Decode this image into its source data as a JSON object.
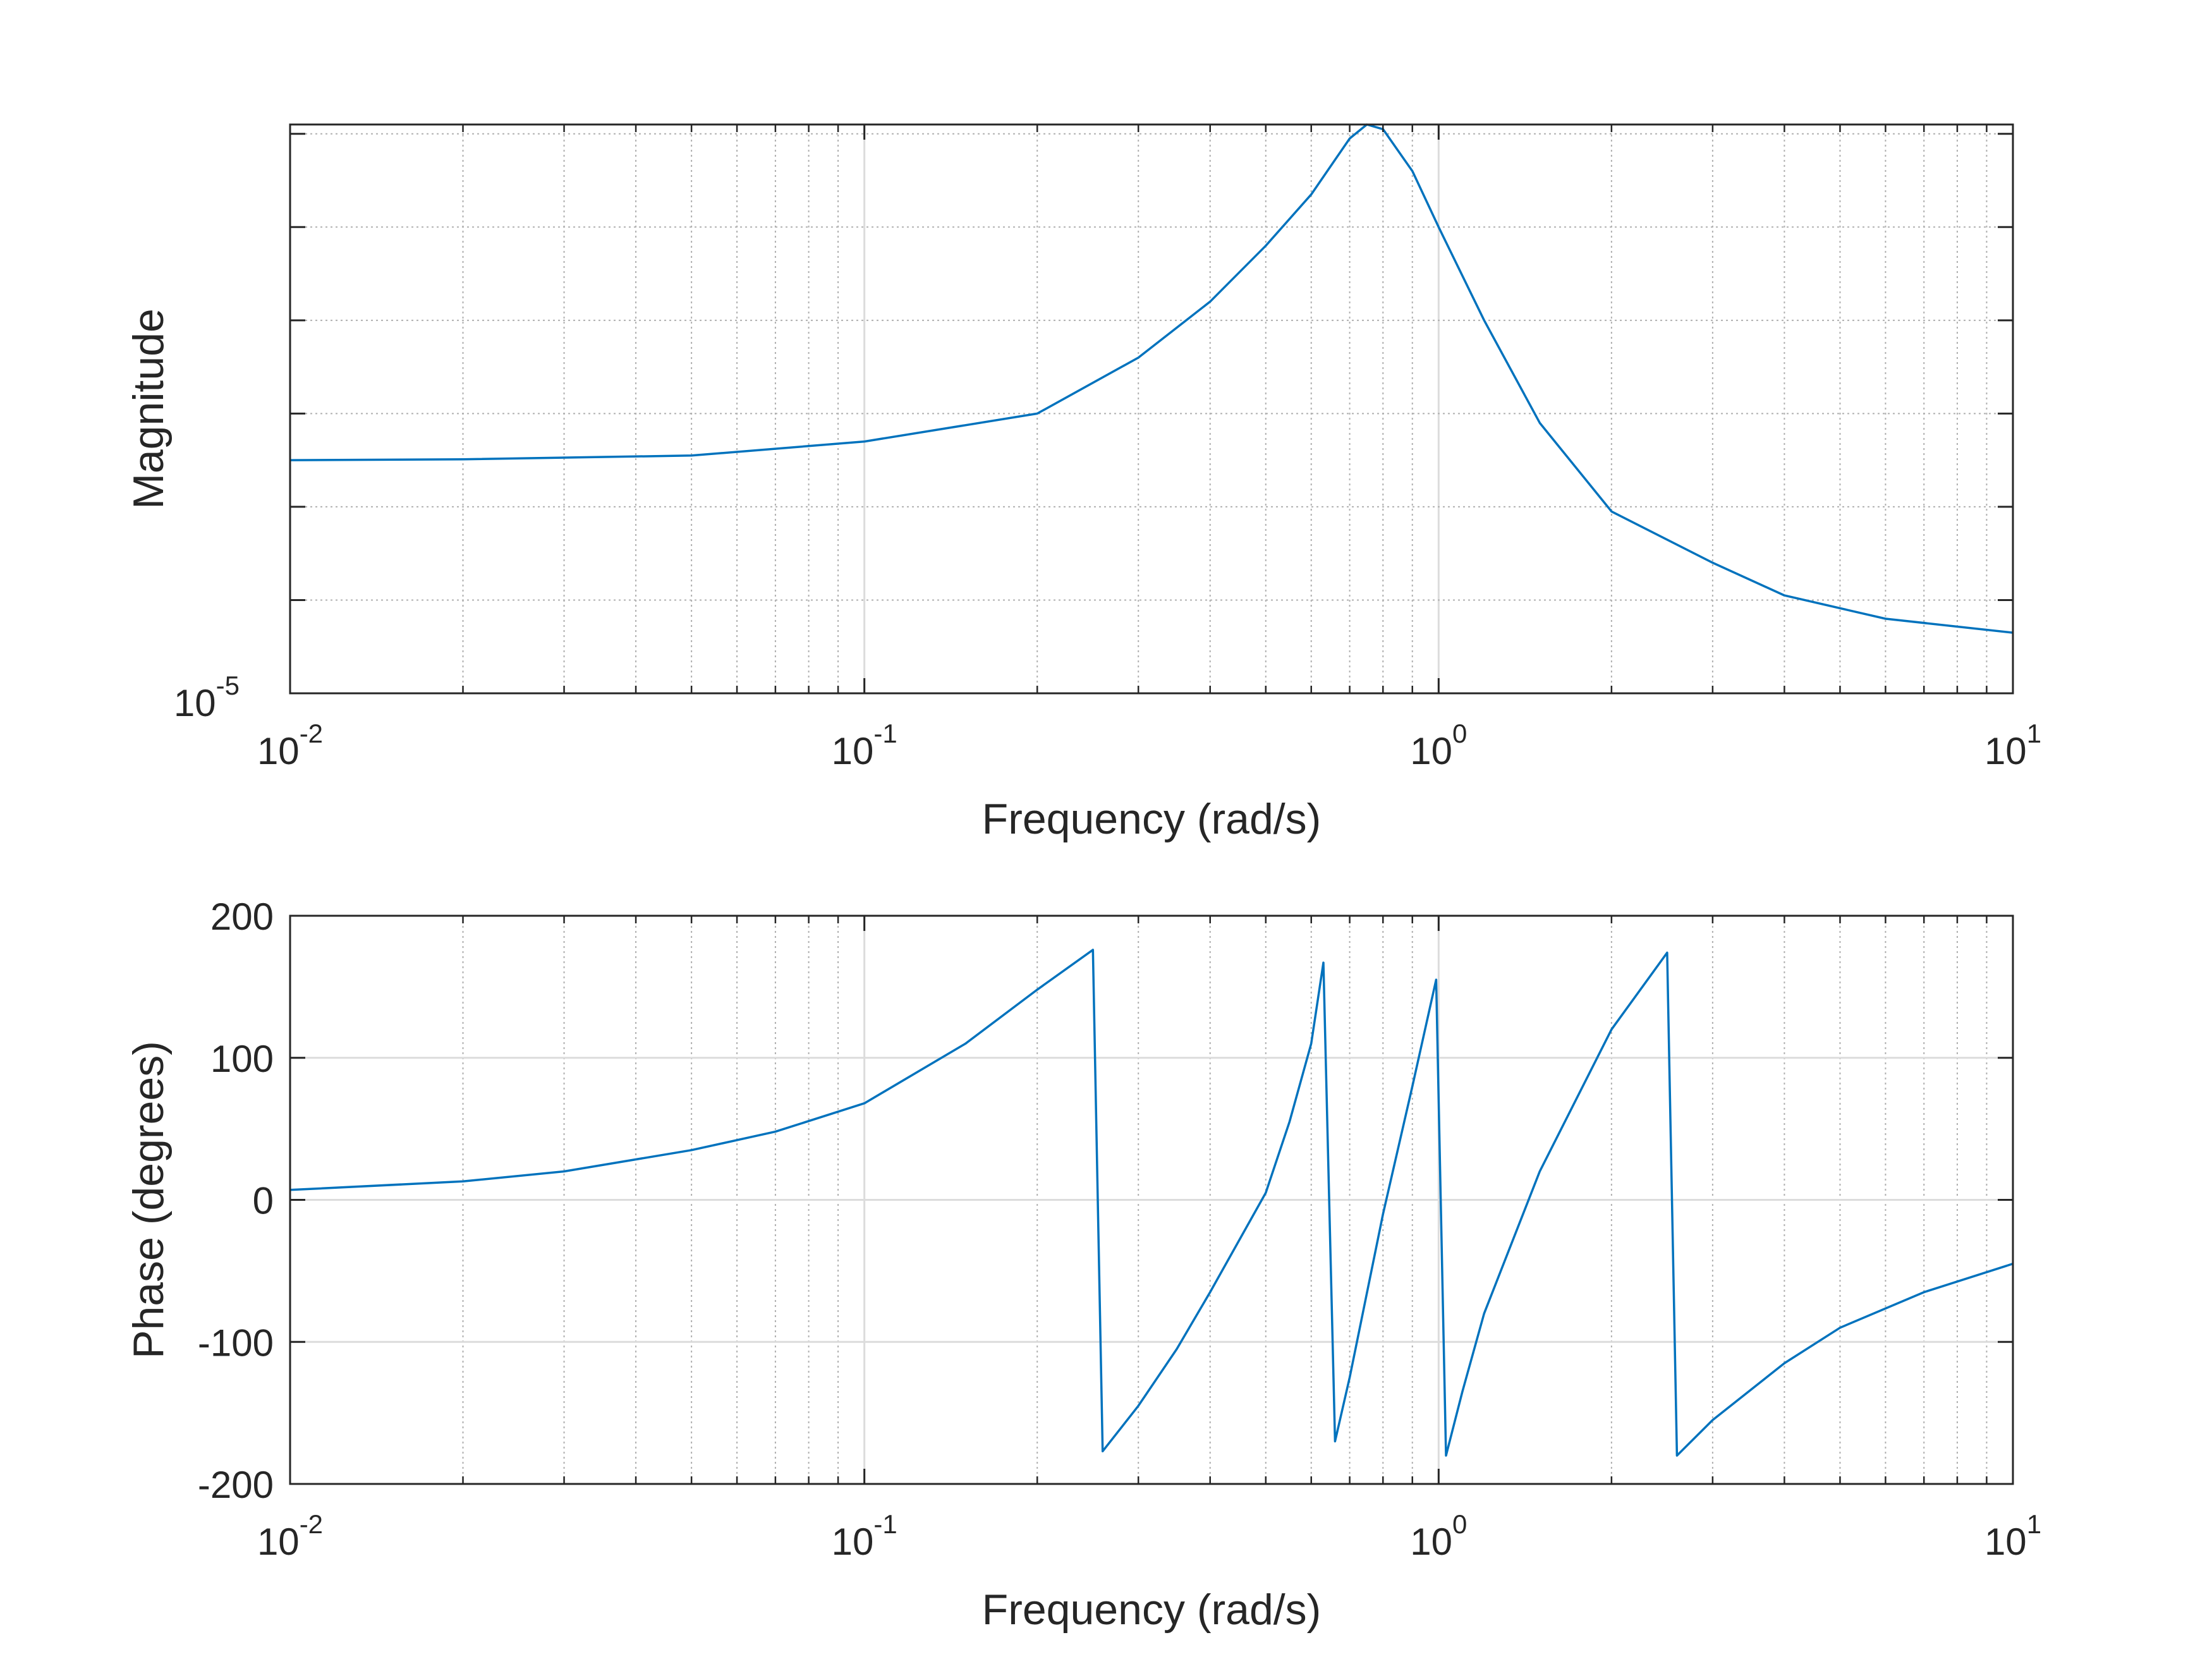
{
  "figure": {
    "colors": {
      "line": "#0072BD",
      "axes": "#262626",
      "grid": "#b0b0b0"
    },
    "charts": [
      {
        "id": "magnitude",
        "type": "line",
        "title": "",
        "xlabel": "Frequency (rad/s)",
        "ylabel": "Magnitude",
        "xscale": "log",
        "yscale": "log",
        "xlim": [
          0.01,
          10
        ],
        "xticks": [
          {
            "base": "10",
            "exp": "-2",
            "value": 0.01
          },
          {
            "base": "10",
            "exp": "-1",
            "value": 0.1
          },
          {
            "base": "10",
            "exp": "0",
            "value": 1
          },
          {
            "base": "10",
            "exp": "1",
            "value": 10
          }
        ],
        "ylim_decades": [
          -5,
          1.1
        ],
        "yticks": [
          {
            "base": "10",
            "exp": "-5",
            "value": -5
          }
        ],
        "grid": true,
        "series": [
          {
            "x": [
              0.01,
              0.02,
              0.05,
              0.1,
              0.2,
              0.3,
              0.4,
              0.5,
              0.6,
              0.7,
              0.75,
              0.8,
              0.9,
              1.0,
              1.2,
              1.5,
              2.0,
              3.0,
              4.0,
              6.0,
              10.0
            ],
            "y_decades": [
              -2.5,
              -2.49,
              -2.45,
              -2.3,
              -2.0,
              -1.4,
              -0.8,
              -0.2,
              0.35,
              0.95,
              1.1,
              1.05,
              0.6,
              0.0,
              -1.0,
              -2.1,
              -3.05,
              -3.6,
              -3.95,
              -4.2,
              -4.35
            ]
          }
        ]
      },
      {
        "id": "phase",
        "type": "line",
        "title": "",
        "xlabel": "Frequency (rad/s)",
        "ylabel": "Phase (degrees)",
        "xscale": "log",
        "xlim": [
          0.01,
          10
        ],
        "xticks": [
          {
            "base": "10",
            "exp": "-2",
            "value": 0.01
          },
          {
            "base": "10",
            "exp": "-1",
            "value": 0.1
          },
          {
            "base": "10",
            "exp": "0",
            "value": 1
          },
          {
            "base": "10",
            "exp": "1",
            "value": 10
          }
        ],
        "ylim": [
          -200,
          200
        ],
        "yticks": [
          {
            "label": "200",
            "value": 200
          },
          {
            "label": "100",
            "value": 100
          },
          {
            "label": "0",
            "value": 0
          },
          {
            "label": "-100",
            "value": -100
          },
          {
            "label": "-200",
            "value": -200
          }
        ],
        "grid": true,
        "series": [
          {
            "x": [
              0.01,
              0.02,
              0.03,
              0.05,
              0.07,
              0.1,
              0.15,
              0.2,
              0.25,
              0.26,
              0.3,
              0.35,
              0.4,
              0.5,
              0.55,
              0.6,
              0.63,
              0.66,
              0.7,
              0.8,
              0.9,
              0.99,
              1.03,
              1.1,
              1.2,
              1.5,
              2.0,
              2.5,
              2.6,
              3.0,
              4.0,
              5.0,
              7.0,
              10.0
            ],
            "y": [
              7,
              13,
              20,
              35,
              48,
              68,
              110,
              148,
              176,
              -177,
              -145,
              -105,
              -65,
              5,
              55,
              110,
              167,
              -170,
              -125,
              -10,
              80,
              155,
              -180,
              -135,
              -80,
              20,
              120,
              174,
              -180,
              -155,
              -115,
              -90,
              -65,
              -45
            ]
          }
        ]
      }
    ]
  }
}
